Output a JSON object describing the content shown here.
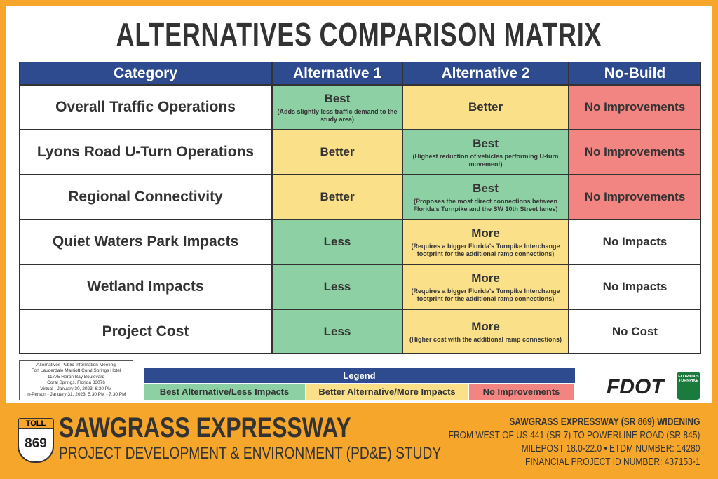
{
  "title": "ALTERNATIVES COMPARISON MATRIX",
  "table": {
    "headers": [
      "Category",
      "Alternative 1",
      "Alternative 2",
      "No-Build"
    ],
    "rows": [
      [
        "Overall Traffic Operations",
        {
          "text": "Best",
          "note": "(Adds slightly less traffic demand to the study area)",
          "color": "#8dd0a4"
        },
        {
          "text": "Better",
          "color": "#fbe08a"
        },
        {
          "text": "No Improvements",
          "color": "#f28482"
        }
      ],
      [
        "Lyons Road U-Turn Operations",
        {
          "text": "Better",
          "color": "#fbe08a"
        },
        {
          "text": "Best",
          "note": "(Highest reduction of vehicles performing U-turn movement)",
          "color": "#8dd0a4"
        },
        {
          "text": "No Improvements",
          "color": "#f28482"
        }
      ],
      [
        "Regional Connectivity",
        {
          "text": "Better",
          "color": "#fbe08a"
        },
        {
          "text": "Best",
          "note": "(Proposes the most direct connections between Florida's Turnpike and the SW 10th Street lanes)",
          "color": "#8dd0a4"
        },
        {
          "text": "No Improvements",
          "color": "#f28482"
        }
      ],
      [
        "Quiet Waters Park Impacts",
        {
          "text": "Less",
          "color": "#8dd0a4"
        },
        {
          "text": "More",
          "note": "(Requires a bigger Florida's Turnpike Interchange footprint for the additional ramp connections)",
          "color": "#fbe08a"
        },
        {
          "text": "No Impacts",
          "color": "#ffffff"
        }
      ],
      [
        "Wetland Impacts",
        {
          "text": "Less",
          "color": "#8dd0a4"
        },
        {
          "text": "More",
          "note": "(Requires a bigger Florida's Turnpike Interchange footprint for the additional ramp connections)",
          "color": "#fbe08a"
        },
        {
          "text": "No Impacts",
          "color": "#ffffff"
        }
      ],
      [
        "Project Cost",
        {
          "text": "Less",
          "color": "#8dd0a4"
        },
        {
          "text": "More",
          "note": "(Higher cost with the additional ramp connections)",
          "color": "#fbe08a"
        },
        {
          "text": "No Cost",
          "color": "#ffffff"
        }
      ]
    ]
  },
  "meeting_info": [
    "Alternatives Public Information Meeting",
    "Fort Lauderdale Marriott Coral Springs Hotel",
    "11775 Heron Bay Boulevard",
    "Coral Springs, Florida 33076",
    "Virtual - January 30, 2023, 6:30 PM",
    "In-Person - January 31, 2023, 5:30 PM - 7:30 PM"
  ],
  "legend": {
    "title": "Legend",
    "items": [
      {
        "text": "Best Alternative/Less Impacts",
        "color": "#8dd0a4"
      },
      {
        "text": "Better Alternative/More Impacts",
        "color": "#fbe08a"
      },
      {
        "text": "No Improvements",
        "color": "#f28482"
      }
    ]
  },
  "logos": {
    "fdot": "FDOT",
    "turnpike": "FLORIDA'S TURNPIKE"
  },
  "footer": {
    "shield_top": "TOLL",
    "shield_number": "869",
    "name": "SAWGRASS EXPRESSWAY",
    "subtitle": "PROJECT DEVELOPMENT & ENVIRONMENT (PD&E) STUDY",
    "details": [
      "SAWGRASS EXPRESSWAY (SR 869) WIDENING",
      "FROM WEST OF US 441 (SR 7) TO POWERLINE ROAD (SR 845)",
      "MILEPOST 18.0-22.0 • ETDM NUMBER: 14280",
      "FINANCIAL PROJECT ID NUMBER: 437153-1"
    ]
  }
}
